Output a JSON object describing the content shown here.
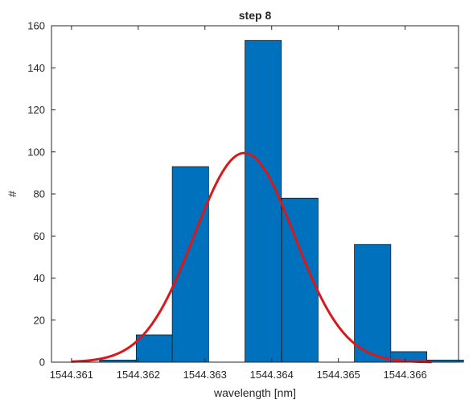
{
  "chart_data": {
    "type": "bar",
    "title": "step 8",
    "xlabel": "wavelength [nm]",
    "ylabel": "#",
    "xlim": [
      1544.3607,
      1544.3668
    ],
    "ylim": [
      0,
      160
    ],
    "xticks": [
      1544.361,
      1544.362,
      1544.363,
      1544.364,
      1544.365,
      1544.366
    ],
    "xtick_labels": [
      "1544.361",
      "1544.362",
      "1544.363",
      "1544.364",
      "1544.365",
      "1544.366"
    ],
    "yticks": [
      0,
      20,
      40,
      60,
      80,
      100,
      120,
      140,
      160
    ],
    "ytick_labels": [
      "0",
      "20",
      "40",
      "60",
      "80",
      "100",
      "120",
      "140",
      "160"
    ],
    "grid": false,
    "bin_width": 0.000545,
    "bins": [
      {
        "x0": 1544.36142,
        "count": 1
      },
      {
        "x0": 1544.36197,
        "count": 13
      },
      {
        "x0": 1544.36251,
        "count": 93
      },
      {
        "x0": 1544.36306,
        "count": 0
      },
      {
        "x0": 1544.3636,
        "count": 153
      },
      {
        "x0": 1544.36415,
        "count": 78
      },
      {
        "x0": 1544.36469,
        "count": 0
      },
      {
        "x0": 1544.36524,
        "count": 56
      },
      {
        "x0": 1544.36578,
        "count": 5
      },
      {
        "x0": 1544.36633,
        "count": 1
      }
    ],
    "fit": {
      "type": "gaussian",
      "peak": 99.5,
      "mean": 1544.36359,
      "sigma": 0.00075,
      "x_range": [
        1544.361,
        1544.3664
      ]
    },
    "colors": {
      "bar_fill": "#0072BD",
      "bar_edge": "#1a1a1a",
      "fit_line": "#D7191C",
      "axes": "#262626"
    }
  }
}
